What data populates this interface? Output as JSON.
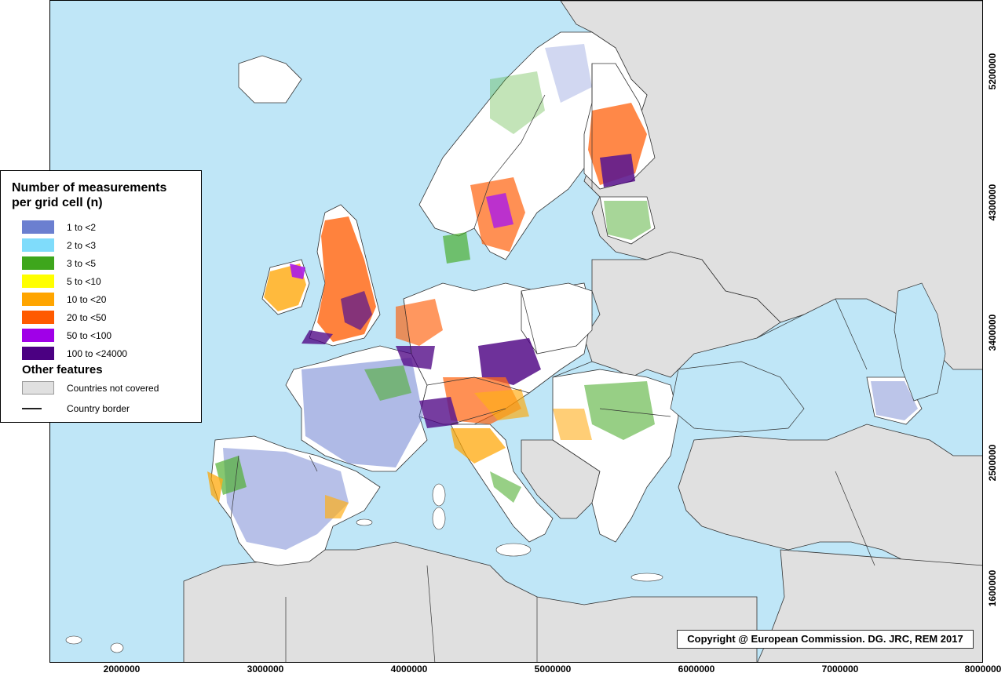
{
  "legend": {
    "title": "Number of measurements\nper grid cell (n)",
    "classes": [
      {
        "label": "1 to <2",
        "color": "#6b7fd0"
      },
      {
        "label": "2 to <3",
        "color": "#7fdcfb"
      },
      {
        "label": "3 to <5",
        "color": "#3ea61c"
      },
      {
        "label": "5 to <10",
        "color": "#ffff00"
      },
      {
        "label": "10 to <20",
        "color": "#ffa500"
      },
      {
        "label": "20 to <50",
        "color": "#ff5a00"
      },
      {
        "label": "50 to <100",
        "color": "#a000e8"
      },
      {
        "label": "100 to <24000",
        "color": "#4b0082"
      }
    ],
    "other_title": "Other features",
    "other_items": [
      {
        "label": "Countries not covered",
        "color": "#e0e0e0"
      },
      {
        "label": "Country border",
        "color": "#222222"
      }
    ]
  },
  "axes": {
    "x_ticks": [
      "2000000",
      "3000000",
      "4000000",
      "5000000",
      "6000000",
      "7000000",
      "8000000"
    ],
    "y_ticks": [
      "5200000",
      "4300000",
      "3400000",
      "2500000",
      "1600000"
    ]
  },
  "copyright": "Copyright @ European Commission. DG. JRC, REM 2017",
  "colors": {
    "sea": "#bfe6f7",
    "not_covered": "#e0e0e0",
    "covered_empty": "#ffffff",
    "border": "#222222"
  }
}
